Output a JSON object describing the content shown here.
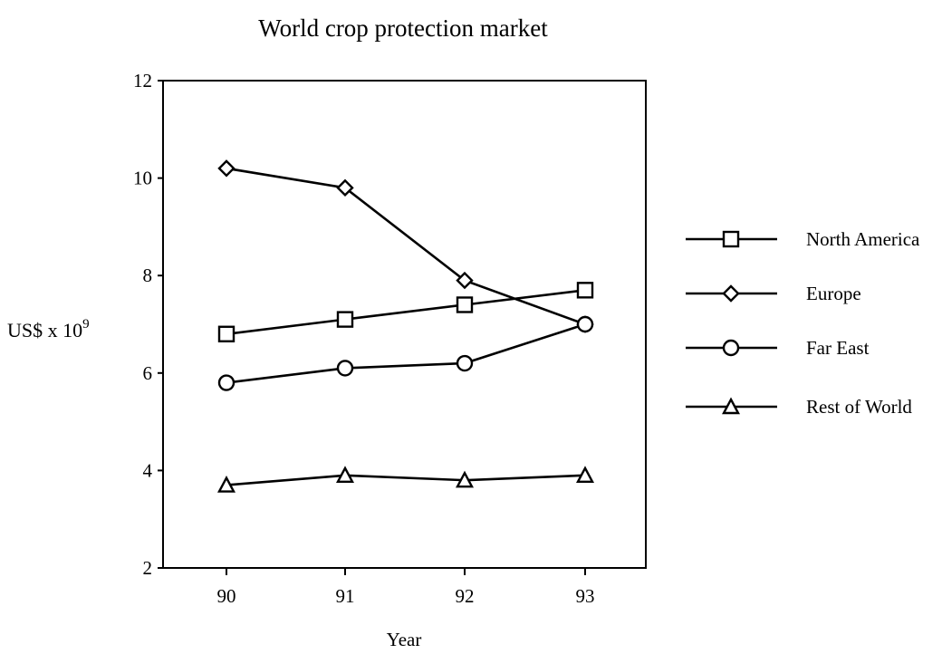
{
  "chart_data": {
    "type": "line",
    "title": "World crop protection market",
    "xlabel": "Year",
    "ylabel": "US$ x 10",
    "ylabel_superscript": "9",
    "x": [
      "90",
      "91",
      "92",
      "93"
    ],
    "ylim": [
      2,
      12
    ],
    "yticks": [
      "2",
      "4",
      "6",
      "8",
      "10",
      "12"
    ],
    "grid": false,
    "legend_position": "right",
    "series": [
      {
        "name": "North America",
        "marker": "square",
        "values": [
          6.8,
          7.1,
          7.4,
          7.7
        ]
      },
      {
        "name": "Europe",
        "marker": "diamond",
        "values": [
          10.2,
          9.8,
          7.9,
          7.0
        ]
      },
      {
        "name": "Far East",
        "marker": "circle",
        "values": [
          5.8,
          6.1,
          6.2,
          7.0
        ]
      },
      {
        "name": "Rest of World",
        "marker": "triangle",
        "values": [
          3.7,
          3.9,
          3.8,
          3.9
        ]
      }
    ]
  }
}
